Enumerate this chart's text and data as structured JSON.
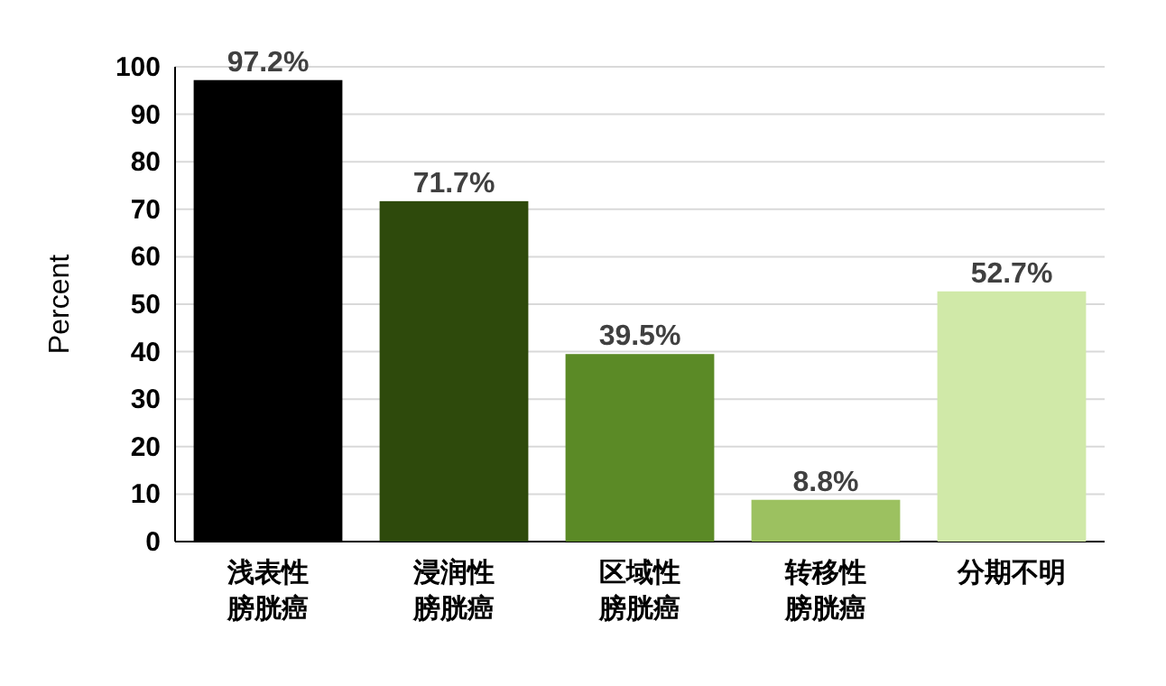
{
  "chart_data": {
    "type": "bar",
    "ylabel": "Percent",
    "categories": [
      "浅表性膀胱癌",
      "浸润性膀胱癌",
      "区域性膀胱癌",
      "转移性膀胱癌",
      "分期不明"
    ],
    "values": [
      97.2,
      71.7,
      39.5,
      8.8,
      52.7
    ],
    "colors": [
      "#000000",
      "#2e4a0c",
      "#5b8a26",
      "#9cc160",
      "#d0e9a8"
    ],
    "value_labels": [
      "97.2%",
      "71.7%",
      "39.5%",
      "8.8%",
      "52.7%"
    ],
    "ylim": [
      0,
      100
    ],
    "yticks": [
      0,
      10,
      20,
      30,
      40,
      50,
      60,
      70,
      80,
      90,
      100
    ],
    "grid": "y"
  }
}
